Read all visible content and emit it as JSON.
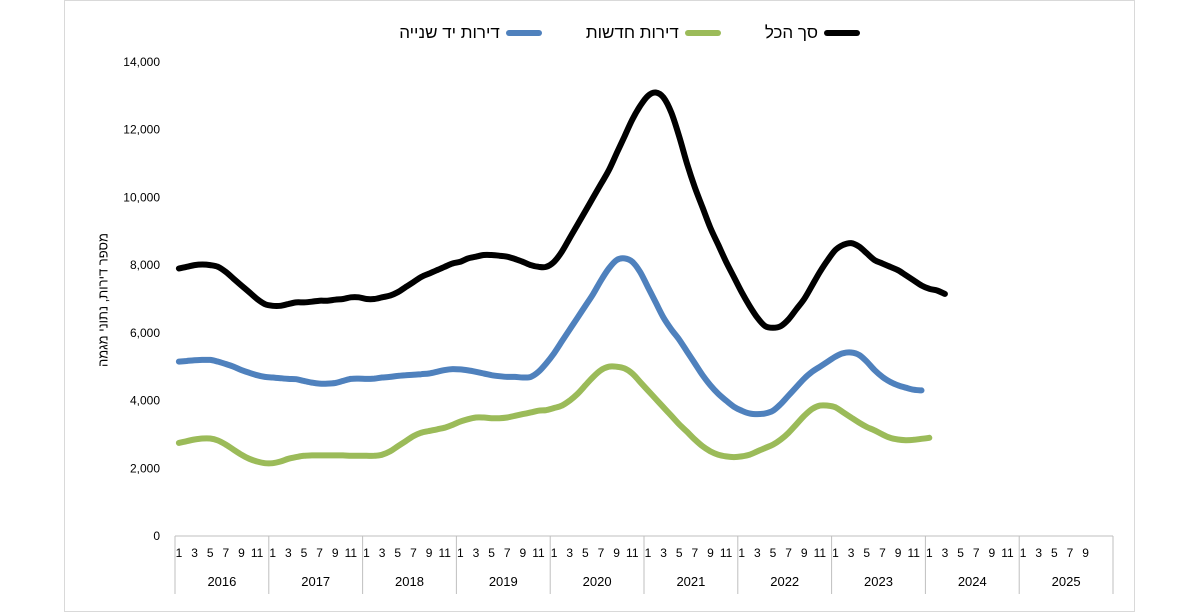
{
  "chart_data": {
    "type": "line",
    "title": "",
    "xlabel": "",
    "ylabel": "מספר דירות, נתוני מגמה",
    "ylim": [
      0,
      14000
    ],
    "yticks": [
      0,
      2000,
      4000,
      6000,
      8000,
      10000,
      12000,
      14000
    ],
    "ytick_labels": [
      "0",
      "2,000",
      "4,000",
      "6,000",
      "8,000",
      "10,000",
      "12,000",
      "14,000"
    ],
    "grid": false,
    "legend_position": "top",
    "years": [
      "2016",
      "2017",
      "2018",
      "2019",
      "2020",
      "2021",
      "2022",
      "2023",
      "2024",
      "2025"
    ],
    "month_labels": [
      "1",
      "3",
      "5",
      "7",
      "9",
      "11"
    ],
    "last_year_months": [
      "1",
      "3",
      "5",
      "7",
      "9"
    ],
    "series": [
      {
        "name": "סך הכל",
        "color": "#000000",
        "values": [
          7900,
          7950,
          8000,
          8020,
          8000,
          7950,
          7800,
          7600,
          7400,
          7200,
          7000,
          6850,
          6800,
          6800,
          6850,
          6900,
          6900,
          6920,
          6950,
          6950,
          6980,
          7000,
          7050,
          7050,
          7000,
          7000,
          7050,
          7100,
          7200,
          7350,
          7500,
          7650,
          7750,
          7850,
          7950,
          8050,
          8100,
          8200,
          8250,
          8300,
          8300,
          8280,
          8250,
          8180,
          8100,
          8000,
          7950,
          7950,
          8100,
          8400,
          8800,
          9200,
          9600,
          10000,
          10400,
          10800,
          11300,
          11800,
          12300,
          12700,
          13000,
          13100,
          12950,
          12500,
          11800,
          11000,
          10300,
          9700,
          9100,
          8600,
          8100,
          7650,
          7200,
          6800,
          6450,
          6200,
          6150,
          6200,
          6400,
          6700,
          7000,
          7400,
          7800,
          8150,
          8450,
          8600,
          8650,
          8550,
          8350,
          8150,
          8050,
          7950,
          7850,
          7700,
          7550,
          7400,
          7300,
          7250,
          7150
        ]
      },
      {
        "name": "דירות חדשות",
        "color": "#9bbb59",
        "values": [
          2750,
          2800,
          2850,
          2880,
          2880,
          2820,
          2700,
          2550,
          2400,
          2280,
          2200,
          2150,
          2150,
          2200,
          2280,
          2330,
          2370,
          2380,
          2380,
          2380,
          2380,
          2380,
          2370,
          2370,
          2370,
          2370,
          2400,
          2500,
          2650,
          2800,
          2950,
          3050,
          3100,
          3150,
          3200,
          3280,
          3380,
          3450,
          3500,
          3500,
          3480,
          3480,
          3500,
          3550,
          3600,
          3650,
          3700,
          3720,
          3780,
          3850,
          4000,
          4200,
          4450,
          4700,
          4900,
          5000,
          5000,
          4950,
          4800,
          4550,
          4300,
          4050,
          3800,
          3550,
          3300,
          3080,
          2850,
          2650,
          2500,
          2400,
          2350,
          2330,
          2350,
          2400,
          2500,
          2600,
          2700,
          2850,
          3050,
          3300,
          3550,
          3750,
          3850,
          3850,
          3800,
          3650,
          3500,
          3350,
          3220,
          3120,
          3000,
          2900,
          2850,
          2830,
          2840,
          2870,
          2900
        ]
      },
      {
        "name": "דירות יד שנייה",
        "color": "#4f81bd",
        "values": [
          5150,
          5170,
          5190,
          5200,
          5200,
          5150,
          5080,
          5000,
          4900,
          4820,
          4750,
          4700,
          4680,
          4660,
          4640,
          4630,
          4580,
          4530,
          4500,
          4500,
          4520,
          4580,
          4640,
          4650,
          4640,
          4650,
          4680,
          4700,
          4730,
          4750,
          4760,
          4780,
          4800,
          4850,
          4900,
          4930,
          4920,
          4890,
          4850,
          4800,
          4750,
          4720,
          4700,
          4700,
          4680,
          4700,
          4850,
          5100,
          5400,
          5750,
          6100,
          6450,
          6800,
          7150,
          7550,
          7900,
          8150,
          8200,
          8100,
          7800,
          7350,
          6900,
          6450,
          6100,
          5800,
          5450,
          5100,
          4750,
          4450,
          4200,
          4000,
          3820,
          3700,
          3620,
          3600,
          3620,
          3700,
          3900,
          4150,
          4400,
          4650,
          4850,
          5000,
          5150,
          5300,
          5400,
          5420,
          5350,
          5150,
          4900,
          4700,
          4550,
          4450,
          4380,
          4320,
          4300
        ]
      }
    ]
  }
}
